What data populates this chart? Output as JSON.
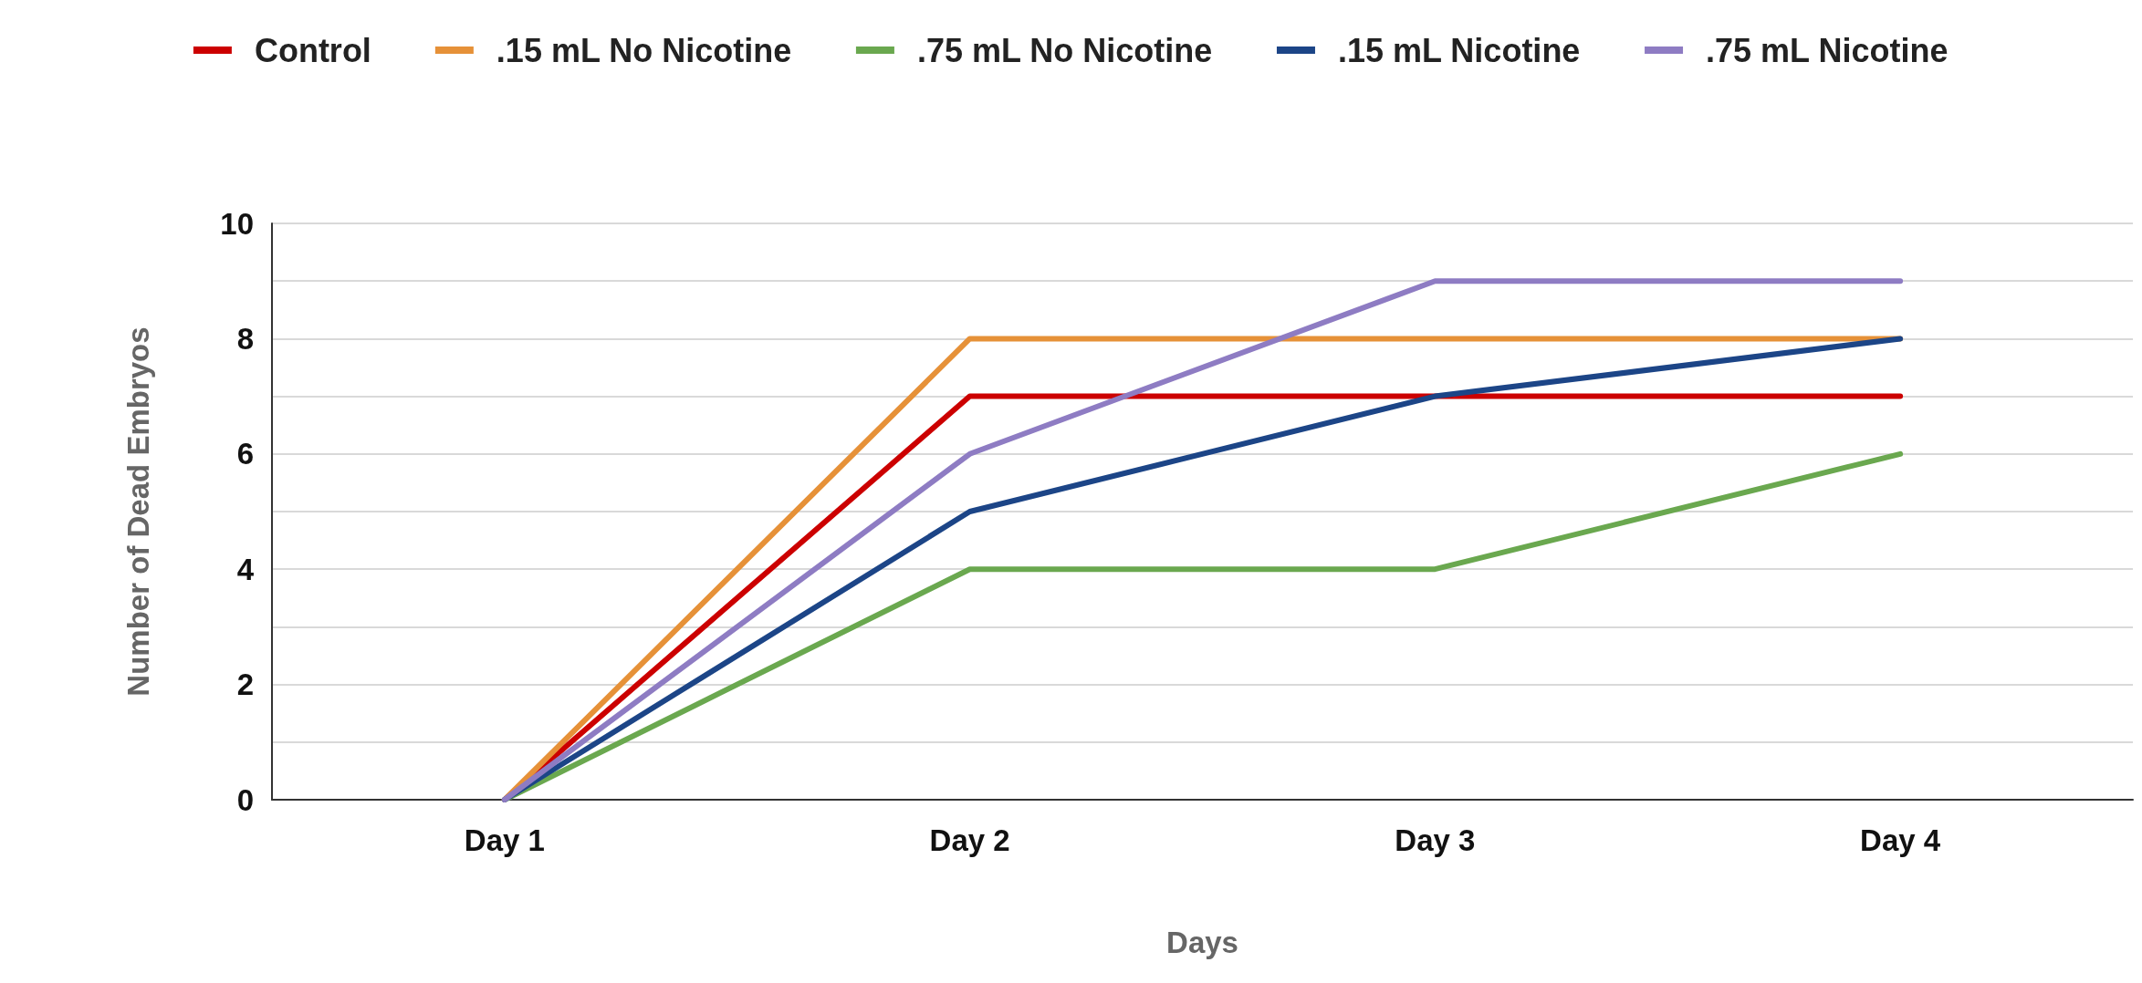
{
  "chart_data": {
    "type": "line",
    "xlabel": "Days",
    "ylabel": "Number of Dead Embryos",
    "categories": [
      "Day 1",
      "Day 2",
      "Day 3",
      "Day 4"
    ],
    "series": [
      {
        "name": "Control",
        "color": "#cc0000",
        "values": [
          0,
          7,
          7,
          7
        ]
      },
      {
        "name": ".15 mL No Nicotine",
        "color": "#e69138",
        "values": [
          0,
          8,
          8,
          8
        ]
      },
      {
        "name": ".75 mL No Nicotine",
        "color": "#6aa84f",
        "values": [
          0,
          4,
          4,
          6
        ]
      },
      {
        "name": ".15 mL Nicotine",
        "color": "#1c4587",
        "values": [
          0,
          5,
          7,
          8
        ]
      },
      {
        "name": ".75 mL Nicotine",
        "color": "#8e7cc3",
        "values": [
          0,
          6,
          9,
          9
        ]
      }
    ],
    "ylim": [
      0,
      10
    ],
    "yticks": [
      0,
      {
        "value": 1,
        "label": null
      },
      2,
      {
        "value": 3,
        "label": null
      },
      4,
      {
        "value": 5,
        "label": null
      },
      6,
      {
        "value": 7,
        "label": null
      },
      8,
      {
        "value": 9,
        "label": null
      },
      10
    ],
    "grid": "y",
    "legend": "top",
    "marker": "none",
    "line_style": "solid"
  }
}
